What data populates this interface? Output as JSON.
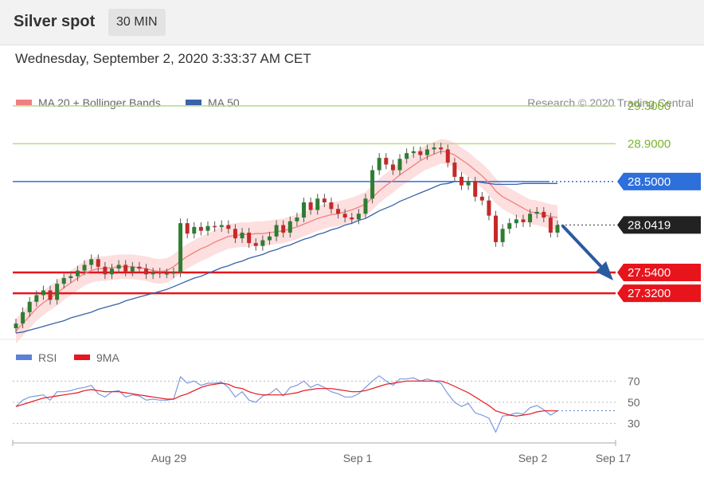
{
  "header": {
    "title": "Silver spot",
    "interval": "30 MIN",
    "datetime": "Wednesday, September 2, 2020 3:33:37 AM CET"
  },
  "chart_data": [
    {
      "type": "candlestick",
      "instrument": "Silver spot",
      "timeframe": "30 MIN",
      "legend": [
        {
          "name": "MA 20 + Bollinger Bands",
          "color": "#f08080"
        },
        {
          "name": "MA 50",
          "color": "#3a62a8"
        }
      ],
      "credit": "Research © 2020 Trading Central",
      "ylim": [
        26.9,
        29.45
      ],
      "levels": [
        {
          "value": 29.3,
          "label": "29.3000",
          "style": "resistance",
          "color": "#8bc34a",
          "tag": false
        },
        {
          "value": 28.9,
          "label": "28.9000",
          "style": "resistance",
          "color": "#8bc34a",
          "tag": false
        },
        {
          "value": 28.5,
          "label": "28.5000",
          "style": "pivot",
          "color": "#2d6fdb",
          "tag": true
        },
        {
          "value": 28.0419,
          "label": "28.0419",
          "style": "last",
          "color": "#222222",
          "tag": true
        },
        {
          "value": 27.54,
          "label": "27.5400",
          "style": "support",
          "color": "#e8141c",
          "tag": true
        },
        {
          "value": 27.32,
          "label": "27.3200",
          "style": "support",
          "color": "#e8141c",
          "tag": true
        }
      ],
      "closes": [
        27.0,
        27.12,
        27.23,
        27.3,
        27.35,
        27.25,
        27.42,
        27.48,
        27.5,
        27.56,
        27.62,
        27.68,
        27.6,
        27.52,
        27.58,
        27.62,
        27.55,
        27.6,
        27.58,
        27.52,
        27.54,
        27.53,
        27.53,
        27.54,
        28.06,
        27.95,
        28.02,
        27.98,
        28.03,
        28.02,
        28.04,
        28.0,
        27.9,
        27.96,
        27.85,
        27.82,
        27.88,
        27.92,
        28.04,
        27.96,
        28.08,
        28.12,
        28.28,
        28.2,
        28.32,
        28.28,
        28.21,
        28.16,
        28.12,
        28.1,
        28.16,
        28.32,
        28.62,
        28.75,
        28.68,
        28.62,
        28.74,
        28.8,
        28.82,
        28.78,
        28.84,
        28.86,
        28.84,
        28.7,
        28.55,
        28.46,
        28.5,
        28.34,
        28.3,
        28.14,
        27.86,
        28.0,
        28.06,
        28.1,
        28.07,
        28.16,
        28.18,
        28.12,
        27.96,
        28.04
      ],
      "ma50": [
        26.9,
        26.91,
        26.93,
        26.95,
        26.97,
        26.99,
        27.01,
        27.03,
        27.06,
        27.08,
        27.1,
        27.12,
        27.15,
        27.17,
        27.19,
        27.21,
        27.24,
        27.26,
        27.28,
        27.3,
        27.32,
        27.34,
        27.36,
        27.39,
        27.42,
        27.45,
        27.48,
        27.5,
        27.53,
        27.56,
        27.59,
        27.61,
        27.64,
        27.66,
        27.69,
        27.71,
        27.73,
        27.76,
        27.78,
        27.81,
        27.83,
        27.86,
        27.89,
        27.91,
        27.94,
        27.96,
        27.99,
        28.01,
        28.04,
        28.06,
        28.09,
        28.11,
        28.15,
        28.19,
        28.22,
        28.25,
        28.29,
        28.32,
        28.35,
        28.38,
        28.41,
        28.44,
        28.47,
        28.48,
        28.5,
        28.5,
        28.5,
        28.5,
        28.49,
        28.48,
        28.47,
        28.47,
        28.47,
        28.47,
        28.48,
        28.48,
        28.48,
        28.48,
        28.48,
        28.48
      ],
      "ma20": [
        26.92,
        27.0,
        27.08,
        27.16,
        27.22,
        27.27,
        27.32,
        27.38,
        27.43,
        27.48,
        27.53,
        27.56,
        27.58,
        27.58,
        27.59,
        27.6,
        27.6,
        27.6,
        27.59,
        27.58,
        27.56,
        27.55,
        27.56,
        27.6,
        27.66,
        27.71,
        27.75,
        27.79,
        27.82,
        27.86,
        27.89,
        27.92,
        27.93,
        27.94,
        27.94,
        27.95,
        27.95,
        27.96,
        27.97,
        27.98,
        28.0,
        28.02,
        28.05,
        28.08,
        28.11,
        28.13,
        28.15,
        28.16,
        28.18,
        28.2,
        28.23,
        28.26,
        28.33,
        28.4,
        28.46,
        28.51,
        28.57,
        28.62,
        28.67,
        28.72,
        28.76,
        28.79,
        28.82,
        28.81,
        28.78,
        28.73,
        28.68,
        28.62,
        28.56,
        28.49,
        28.4,
        28.34,
        28.3,
        28.26,
        28.22,
        28.18,
        28.17,
        28.15,
        28.13,
        28.12
      ]
    },
    {
      "type": "line",
      "legend": [
        {
          "name": "RSI",
          "color": "#5b80d6"
        },
        {
          "name": "9MA",
          "color": "#e8141c"
        }
      ],
      "ylim": [
        20,
        80
      ],
      "yticks": [
        70,
        50,
        30
      ],
      "xticks": [
        "Aug 29",
        "Sep 1",
        "Sep 2",
        "Sep 17"
      ],
      "rsi": [
        46,
        52,
        55,
        56,
        57,
        52,
        60,
        60,
        61,
        63,
        64,
        66,
        58,
        55,
        60,
        61,
        55,
        57,
        56,
        52,
        53,
        52,
        52,
        53,
        74,
        68,
        70,
        66,
        68,
        68,
        69,
        64,
        55,
        60,
        52,
        50,
        56,
        58,
        63,
        56,
        64,
        66,
        70,
        64,
        67,
        64,
        60,
        58,
        55,
        55,
        58,
        64,
        70,
        75,
        70,
        66,
        72,
        72,
        73,
        70,
        72,
        70,
        68,
        58,
        50,
        46,
        49,
        40,
        38,
        35,
        22,
        37,
        38,
        40,
        39,
        45,
        47,
        43,
        38,
        42
      ],
      "ma9": [
        46,
        48,
        50,
        52,
        54,
        55,
        56,
        57,
        58,
        59,
        61,
        62,
        61,
        60,
        60,
        60,
        59,
        58,
        57,
        56,
        55,
        54,
        53,
        53,
        56,
        58,
        61,
        64,
        66,
        67,
        68,
        67,
        64,
        63,
        60,
        58,
        57,
        57,
        57,
        57,
        58,
        59,
        61,
        62,
        63,
        63,
        63,
        62,
        61,
        60,
        60,
        61,
        63,
        65,
        67,
        68,
        69,
        70,
        70,
        70,
        70,
        70,
        70,
        68,
        65,
        62,
        59,
        55,
        51,
        47,
        42,
        40,
        38,
        37,
        38,
        39,
        41,
        42,
        42,
        42
      ]
    }
  ]
}
